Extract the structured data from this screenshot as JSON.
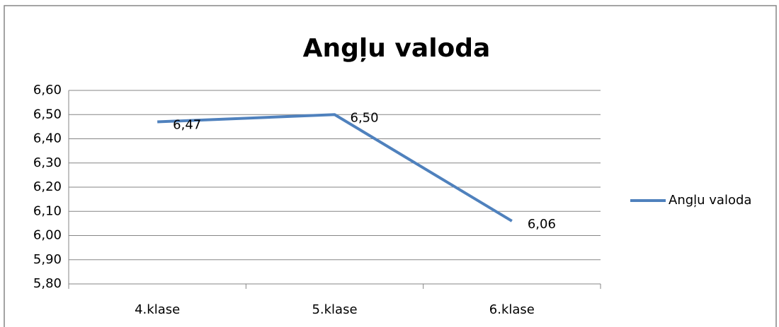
{
  "chart_data": {
    "type": "line",
    "title": "Angļu valoda",
    "categories": [
      "4.klase",
      "5.klase",
      "6.klase"
    ],
    "series": [
      {
        "name": "Angļu valoda",
        "color": "#4f81bd",
        "values": [
          6.47,
          6.5,
          6.06
        ],
        "value_labels": [
          "6,47",
          "6,50",
          "6,06"
        ]
      }
    ],
    "ylim": [
      5.8,
      6.6
    ],
    "yticks": [
      {
        "value": 5.8,
        "label": "5,80"
      },
      {
        "value": 5.9,
        "label": "5,90"
      },
      {
        "value": 6.0,
        "label": "6,00"
      },
      {
        "value": 6.1,
        "label": "6,10"
      },
      {
        "value": 6.2,
        "label": "6,20"
      },
      {
        "value": 6.3,
        "label": "6,30"
      },
      {
        "value": 6.4,
        "label": "6,40"
      },
      {
        "value": 6.5,
        "label": "6,50"
      },
      {
        "value": 6.6,
        "label": "6,60"
      }
    ],
    "grid": true,
    "legend": "right"
  }
}
